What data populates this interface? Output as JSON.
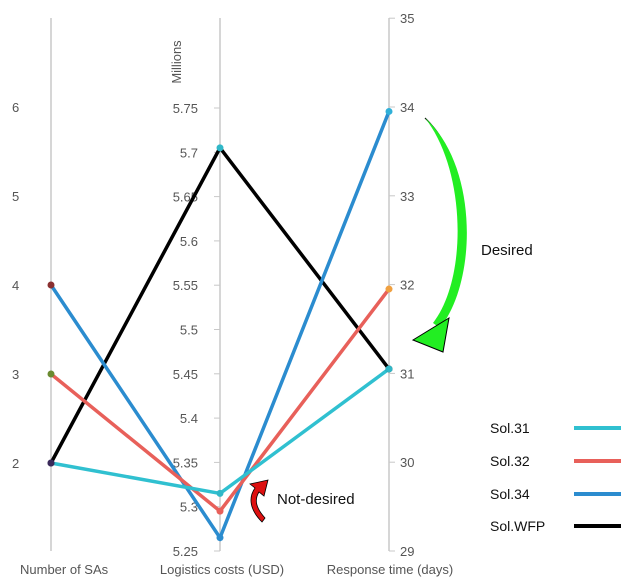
{
  "chart_data": {
    "type": "parallel-coordinates",
    "axes": [
      {
        "label": "Number of SAs",
        "ticks": [
          2,
          3,
          4,
          5,
          6
        ],
        "range": [
          1,
          7
        ]
      },
      {
        "label": "Logistics costs (USD)",
        "unit_label": "Millions",
        "ticks": [
          "5.25",
          "5.3",
          "5.35",
          "5.4",
          "5.45",
          "5.5",
          "5.55",
          "5.6",
          "5.65",
          "5.7",
          "5.75"
        ],
        "range": [
          5.25,
          5.75
        ]
      },
      {
        "label": "Response time (days)",
        "ticks": [
          29,
          30,
          31,
          32,
          33,
          34,
          35
        ],
        "range": [
          29,
          35
        ]
      }
    ],
    "series": [
      {
        "name": "Sol.31",
        "color": "#30c0d0",
        "values": [
          2,
          5.315,
          31.05
        ]
      },
      {
        "name": "Sol.32",
        "color": "#e8605a",
        "values": [
          3,
          5.295,
          31.95
        ]
      },
      {
        "name": "Sol.34",
        "color": "#2b8ccf",
        "values": [
          4,
          5.265,
          33.95
        ]
      },
      {
        "name": "Sol.WFP",
        "color": "#000000",
        "values": [
          2,
          5.705,
          31.05
        ]
      }
    ],
    "annotations": [
      {
        "text": "Desired",
        "arrow_color": "#22ee22"
      },
      {
        "text": "Not-desired",
        "arrow_color": "#dd1111"
      }
    ],
    "legend_placement": "bottom-right"
  }
}
